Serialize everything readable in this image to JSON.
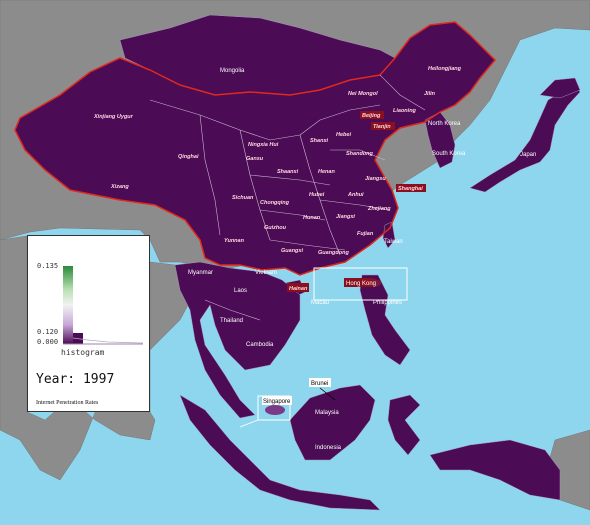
{
  "colors": {
    "ocean": "#8ed6ee",
    "land_other": "#8c8c8c",
    "data_region": "#4b0b55",
    "china_border": "#e0281e",
    "province_lines": "#c9b6d2",
    "label_bg_red": "#8a1020"
  },
  "legend": {
    "ticks": [
      "0.135",
      "0.120",
      "0.000"
    ],
    "histogram_label": "histogram",
    "year_label": "Year: 1997",
    "subtitle": "Internet Penetration Rates"
  },
  "labels": {
    "mongolia": "Mongolia",
    "heilongjiang": "Heilongjiang",
    "nei_mongol": "Nei Mongol",
    "jilin": "Jilin",
    "liaoning": "Liaoning",
    "beijing": "Beijing",
    "tianjin": "Tianjin",
    "north_korea": "North Korea",
    "south_korea": "South Korea",
    "japan": "Japan",
    "xinjiang": "Xinjiang Uygur",
    "ningxia": "Ningxia Hui",
    "shanxi": "Shanxi",
    "hebei": "Hebei",
    "qinghai": "Qinghai",
    "gansu": "Gansu",
    "shandong": "Shandong",
    "shaanxi": "Shaanxi",
    "henan": "Henan",
    "xizang": "Xizang",
    "jiangsu": "Jiangsu",
    "shanghai": "Shanghai",
    "sichuan": "Sichuan",
    "hubei": "Hubei",
    "anhui": "Anhui",
    "chongqing": "Chongqing",
    "zhejiang": "Zhejiang",
    "hunan": "Hunan",
    "jiangxi": "Jiangxi",
    "guizhou": "Guizhou",
    "fujian": "Fujian",
    "yunnan": "Yunnan",
    "taiwan": "Taiwan",
    "guangxi": "Guangxi",
    "guangdong": "Guangdong",
    "myanmar": "Myanmar",
    "vietnam": "Vietnam",
    "hong_kong": "Hong Kong",
    "laos": "Laos",
    "hainan": "Hainan",
    "macau": "Macau",
    "philippines": "Philippines",
    "thailand": "Thailand",
    "cambodia": "Cambodia",
    "brunei": "Brunei",
    "singapore": "Singapore",
    "malaysia": "Malaysia",
    "indonesia": "Indonesia"
  }
}
